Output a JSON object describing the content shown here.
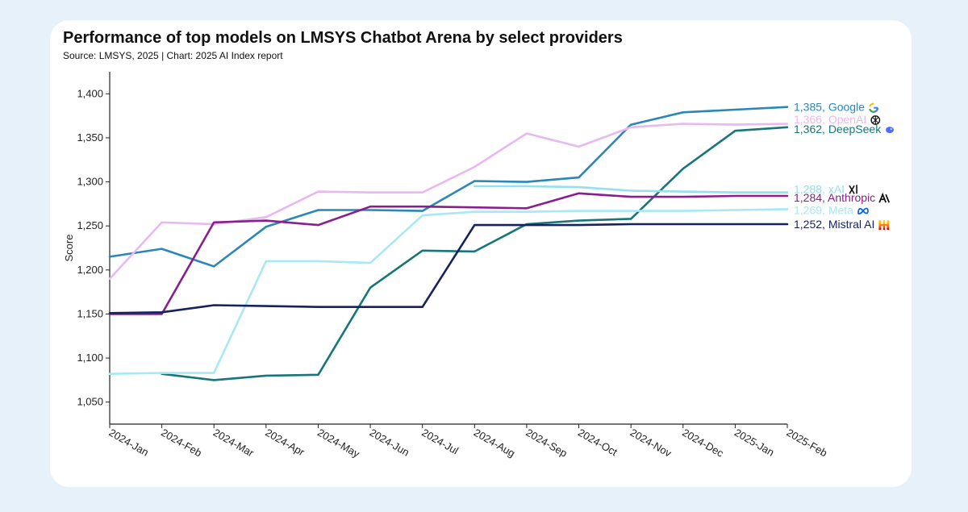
{
  "header": {
    "title": "Performance of top models on LMSYS Chatbot Arena by select providers",
    "subtitle": "Source: LMSYS, 2025 | Chart: 2025 AI Index report"
  },
  "chart_data": {
    "type": "line",
    "title": "Performance of top models on LMSYS Chatbot Arena by select providers",
    "subtitle": "Source: LMSYS, 2025 | Chart: 2025 AI Index report",
    "xlabel": "",
    "ylabel": "Score",
    "categories": [
      "2024-Jan",
      "2024-Feb",
      "2024-Mar",
      "2024-Apr",
      "2024-May",
      "2024-Jun",
      "2024-Jul",
      "2024-Aug",
      "2024-Sep",
      "2024-Oct",
      "2024-Nov",
      "2024-Dec",
      "2025-Jan",
      "2025-Feb"
    ],
    "ylim": [
      1025,
      1425
    ],
    "yticks": [
      1050,
      1100,
      1150,
      1200,
      1250,
      1300,
      1350,
      1400
    ],
    "ytick_labels": [
      "1,050",
      "1,100",
      "1,150",
      "1,200",
      "1,250",
      "1,300",
      "1,350",
      "1,400"
    ],
    "grid": false,
    "legend": "end-of-line labels at right",
    "series": [
      {
        "name": "Google",
        "label": "1,385, Google",
        "icon": "google-logo-icon",
        "color": "#2a87b8",
        "values": [
          1215,
          1224,
          1204,
          1249,
          1268,
          1268,
          1267,
          1301,
          1300,
          1305,
          1365,
          1379,
          1382,
          1385
        ]
      },
      {
        "name": "OpenAI",
        "label": "1,366, OpenAI",
        "icon": "openai-logo-icon",
        "color": "#e8b8f0",
        "values": [
          1190,
          1254,
          1252,
          1260,
          1289,
          1288,
          1288,
          1317,
          1355,
          1340,
          1362,
          1366,
          1365,
          1366
        ]
      },
      {
        "name": "DeepSeek",
        "label": "1,362, DeepSeek",
        "icon": "deepseek-logo-icon",
        "color": "#187579",
        "values": [
          null,
          1082,
          1075,
          1080,
          1081,
          1180,
          1222,
          1221,
          1252,
          1256,
          1258,
          1315,
          1358,
          1362
        ]
      },
      {
        "name": "xAI",
        "label": "1,288, xAI",
        "icon": "xai-logo-icon",
        "color": "#95dff0",
        "values": [
          null,
          null,
          null,
          null,
          null,
          null,
          null,
          1295,
          1295,
          1294,
          1290,
          1289,
          1288,
          1288
        ]
      },
      {
        "name": "Anthropic",
        "label": "1,284, Anthropic",
        "icon": "anthropic-logo-icon",
        "color": "#8b1e8f",
        "values": [
          1150,
          1150,
          1254,
          1256,
          1251,
          1272,
          1272,
          1271,
          1270,
          1287,
          1283,
          1283,
          1284,
          1284
        ]
      },
      {
        "name": "Meta",
        "label": "1,269, Meta",
        "icon": "meta-logo-icon",
        "color": "#a8e8f4",
        "values": [
          1082,
          1083,
          1083,
          1210,
          1210,
          1208,
          1262,
          1266,
          1266,
          1267,
          1267,
          1267,
          1268,
          1269
        ]
      },
      {
        "name": "Mistral AI",
        "label": "1,252, Mistral AI",
        "icon": "mistral-logo-icon",
        "color": "#16225c",
        "values": [
          1151,
          1152,
          1160,
          1159,
          1158,
          1158,
          1158,
          1251,
          1251,
          1251,
          1252,
          1252,
          1252,
          1252
        ]
      }
    ]
  }
}
